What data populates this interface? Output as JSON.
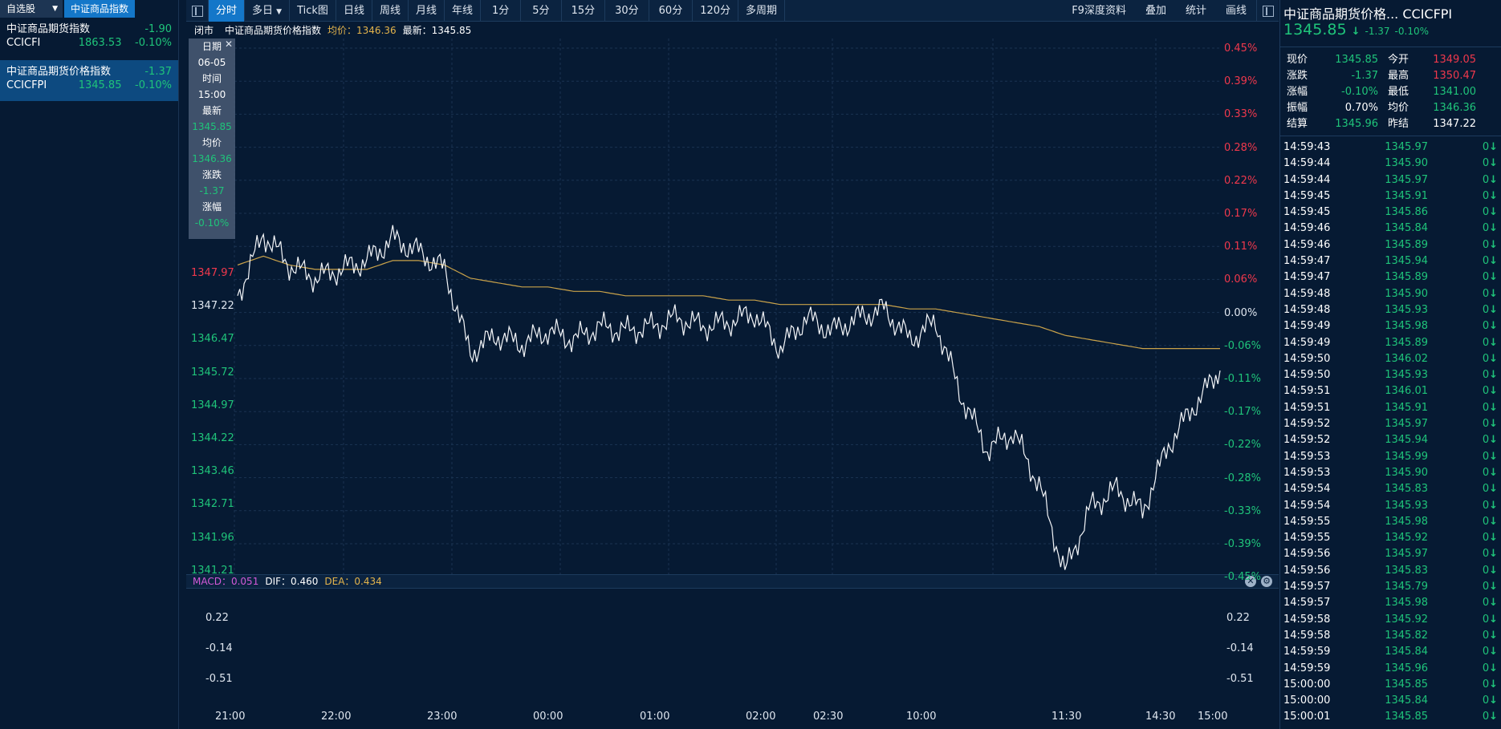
{
  "left": {
    "tabs": [
      "自选股",
      "中证商品指数"
    ],
    "items": [
      {
        "name": "中证商品期货指数",
        "change": "-1.90",
        "code": "CCICFI",
        "price": "1863.53",
        "pct": "-0.10%"
      },
      {
        "name": "中证商品期货价格指数",
        "change": "-1.37",
        "code": "CCICFPI",
        "price": "1345.85",
        "pct": "-0.10%"
      }
    ]
  },
  "toolbar": {
    "buttons": [
      "分时",
      "多日",
      "Tick图",
      "日线",
      "周线",
      "月线",
      "年线",
      "1分",
      "5分",
      "15分",
      "30分",
      "60分",
      "120分",
      "多周期"
    ],
    "right_buttons": [
      "F9深度资料",
      "叠加",
      "统计",
      "画线"
    ]
  },
  "chart_header": {
    "status": "闭市",
    "name": "中证商品期货价格指数",
    "avg_label": "均价：1346.36",
    "last_label": "最新：1345.85"
  },
  "tooltip": {
    "date_label": "日期",
    "date": "06-05",
    "time_label": "时间",
    "time": "15:00",
    "last_label": "最新",
    "last": "1345.85",
    "avg_label": "均价",
    "avg": "1346.36",
    "chg_label": "涨跌",
    "chg": "-1.37",
    "pct_label": "涨幅",
    "pct": "-0.10%"
  },
  "price_axis": {
    "left": [
      "1347.97",
      "1347.22",
      "1346.47",
      "1345.72",
      "1344.97",
      "1344.22",
      "1343.46",
      "1342.71",
      "1341.96",
      "1341.21"
    ],
    "right": [
      "0.45%",
      "0.39%",
      "0.33%",
      "0.28%",
      "0.22%",
      "0.17%",
      "0.11%",
      "0.06%",
      "0.00%",
      "-0.06%",
      "-0.11%",
      "-0.17%",
      "-0.22%",
      "-0.28%",
      "-0.33%",
      "-0.39%",
      "-0.45%"
    ]
  },
  "macd": {
    "macd_label": "MACD：0.051",
    "dif_label": "DIF：0.460",
    "dea_label": "DEA：0.434",
    "axis": [
      "0.22",
      "-0.14",
      "-0.51"
    ]
  },
  "time_axis": [
    "21:00",
    "22:00",
    "23:00",
    "00:00",
    "01:00",
    "02:00",
    "02:30",
    "10:00",
    "11:30",
    "14:30",
    "15:00"
  ],
  "right": {
    "title": "中证商品期货价格...  CCICFPI",
    "price": "1345.85",
    "change": "-1.37",
    "pct": "-0.10%",
    "stats": [
      [
        "现价",
        "1345.85",
        "今开",
        "1349.05"
      ],
      [
        "涨跌",
        "-1.37",
        "最高",
        "1350.47"
      ],
      [
        "涨幅",
        "-0.10%",
        "最低",
        "1341.00"
      ],
      [
        "振幅",
        "0.70%",
        "均价",
        "1346.36"
      ],
      [
        "结算",
        "1345.96",
        "昨结",
        "1347.22"
      ]
    ],
    "ticks": [
      [
        "14:59:43",
        "1345.97",
        "0"
      ],
      [
        "14:59:44",
        "1345.90",
        "0"
      ],
      [
        "14:59:44",
        "1345.97",
        "0"
      ],
      [
        "14:59:45",
        "1345.91",
        "0"
      ],
      [
        "14:59:45",
        "1345.86",
        "0"
      ],
      [
        "14:59:46",
        "1345.84",
        "0"
      ],
      [
        "14:59:46",
        "1345.89",
        "0"
      ],
      [
        "14:59:47",
        "1345.94",
        "0"
      ],
      [
        "14:59:47",
        "1345.89",
        "0"
      ],
      [
        "14:59:48",
        "1345.90",
        "0"
      ],
      [
        "14:59:48",
        "1345.93",
        "0"
      ],
      [
        "14:59:49",
        "1345.98",
        "0"
      ],
      [
        "14:59:49",
        "1345.89",
        "0"
      ],
      [
        "14:59:50",
        "1346.02",
        "0"
      ],
      [
        "14:59:50",
        "1345.93",
        "0"
      ],
      [
        "14:59:51",
        "1346.01",
        "0"
      ],
      [
        "14:59:51",
        "1345.91",
        "0"
      ],
      [
        "14:59:52",
        "1345.97",
        "0"
      ],
      [
        "14:59:52",
        "1345.94",
        "0"
      ],
      [
        "14:59:53",
        "1345.99",
        "0"
      ],
      [
        "14:59:53",
        "1345.90",
        "0"
      ],
      [
        "14:59:54",
        "1345.83",
        "0"
      ],
      [
        "14:59:54",
        "1345.93",
        "0"
      ],
      [
        "14:59:55",
        "1345.98",
        "0"
      ],
      [
        "14:59:55",
        "1345.92",
        "0"
      ],
      [
        "14:59:56",
        "1345.97",
        "0"
      ],
      [
        "14:59:56",
        "1345.83",
        "0"
      ],
      [
        "14:59:57",
        "1345.79",
        "0"
      ],
      [
        "14:59:57",
        "1345.98",
        "0"
      ],
      [
        "14:59:58",
        "1345.92",
        "0"
      ],
      [
        "14:59:58",
        "1345.82",
        "0"
      ],
      [
        "14:59:59",
        "1345.84",
        "0"
      ],
      [
        "14:59:59",
        "1345.96",
        "0"
      ],
      [
        "15:00:00",
        "1345.85",
        "0"
      ],
      [
        "15:00:00",
        "1345.84",
        "0"
      ],
      [
        "15:00:01",
        "1345.85",
        "0"
      ]
    ]
  },
  "chart_data": {
    "type": "line",
    "series": [
      {
        "name": "最新",
        "values": [
          1347.6,
          1349.0,
          1348.3,
          1348.0,
          1348.2,
          1348.4,
          1348.9,
          1348.6,
          1348.2,
          1346.3,
          1346.7,
          1346.5,
          1346.8,
          1346.6,
          1346.9,
          1346.8,
          1346.9,
          1347.1,
          1346.9,
          1347.0,
          1347.2,
          1346.4,
          1347.1,
          1346.8,
          1347.1,
          1347.3,
          1346.6,
          1347.0,
          1345.3,
          1344.1,
          1344.5,
          1343.3,
          1341.3,
          1342.8,
          1343.2,
          1342.7,
          1344.2,
          1345.1,
          1345.9
        ]
      },
      {
        "name": "均价",
        "values": [
          1348.3,
          1348.5,
          1348.3,
          1348.2,
          1348.2,
          1348.2,
          1348.4,
          1348.4,
          1348.3,
          1348.0,
          1347.9,
          1347.8,
          1347.8,
          1347.7,
          1347.7,
          1347.6,
          1347.6,
          1347.6,
          1347.6,
          1347.5,
          1347.5,
          1347.4,
          1347.4,
          1347.4,
          1347.4,
          1347.4,
          1347.3,
          1347.3,
          1347.2,
          1347.1,
          1347.0,
          1346.9,
          1346.7,
          1346.6,
          1346.5,
          1346.4,
          1346.4,
          1346.4,
          1346.4
        ]
      }
    ],
    "ylim": [
      1341.21,
      1353.23
    ]
  }
}
